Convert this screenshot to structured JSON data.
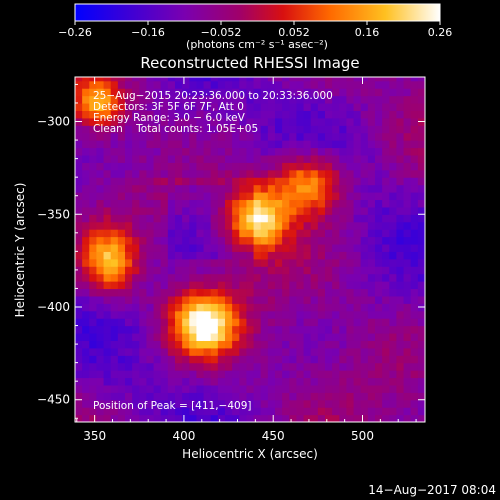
{
  "chart_data": {
    "type": "heatmap",
    "title": "Reconstructed RHESSI Image",
    "colorbar": {
      "label": "(photons cm⁻² s⁻¹ asec⁻²)",
      "range": [
        -0.26,
        0.26
      ],
      "ticks": [
        "−0.26",
        "−0.16",
        "−0.052",
        "0.052",
        "0.16",
        "0.26"
      ],
      "tick_values": [
        -0.26,
        -0.156,
        -0.052,
        0.052,
        0.156,
        0.26
      ],
      "colors": [
        "#0000ff",
        "#3a00d8",
        "#7a00b0",
        "#a0006a",
        "#d81010",
        "#ff6a00",
        "#ffc020",
        "#ffffff"
      ]
    },
    "xlabel": "Heliocentric X (arcsec)",
    "ylabel": "Heliocentric Y (arcsec)",
    "xlim": [
      339,
      535
    ],
    "ylim": [
      -462,
      -276
    ],
    "xticks": [
      350,
      400,
      450,
      500
    ],
    "yticks": [
      -300,
      -350,
      -400,
      -450
    ],
    "xtick_labels": [
      "350",
      "400",
      "450",
      "500"
    ],
    "ytick_labels": [
      "−300",
      "−350",
      "−400",
      "−450"
    ],
    "annotations": [
      "25−Aug−2015 20:23:36.000 to 20:33:36.000",
      "Detectors: 3F 5F 6F 7F, Att 0",
      "Energy Range: 3.0 − 6.0 keV",
      "Clean    Total counts: 1.05E+05",
      "Position of Peak = [411,−409]"
    ],
    "sources": [
      {
        "x": 440,
        "y": -352,
        "peak": 0.23,
        "sx": 12,
        "sy": 12
      },
      {
        "x": 470,
        "y": -333,
        "peak": 0.18,
        "sx": 14,
        "sy": 12
      },
      {
        "x": 411,
        "y": -409,
        "peak": 0.26,
        "sx": 13,
        "sy": 12
      },
      {
        "x": 358,
        "y": -375,
        "peak": 0.17,
        "sx": 11,
        "sy": 12
      },
      {
        "x": 352,
        "y": -290,
        "peak": 0.14,
        "sx": 9,
        "sy": 9
      }
    ],
    "background_level": -0.09,
    "peak_position": [
      411,
      -409
    ],
    "grid": false
  },
  "footer": {
    "timestamp": "14−Aug−2017 08:04"
  }
}
